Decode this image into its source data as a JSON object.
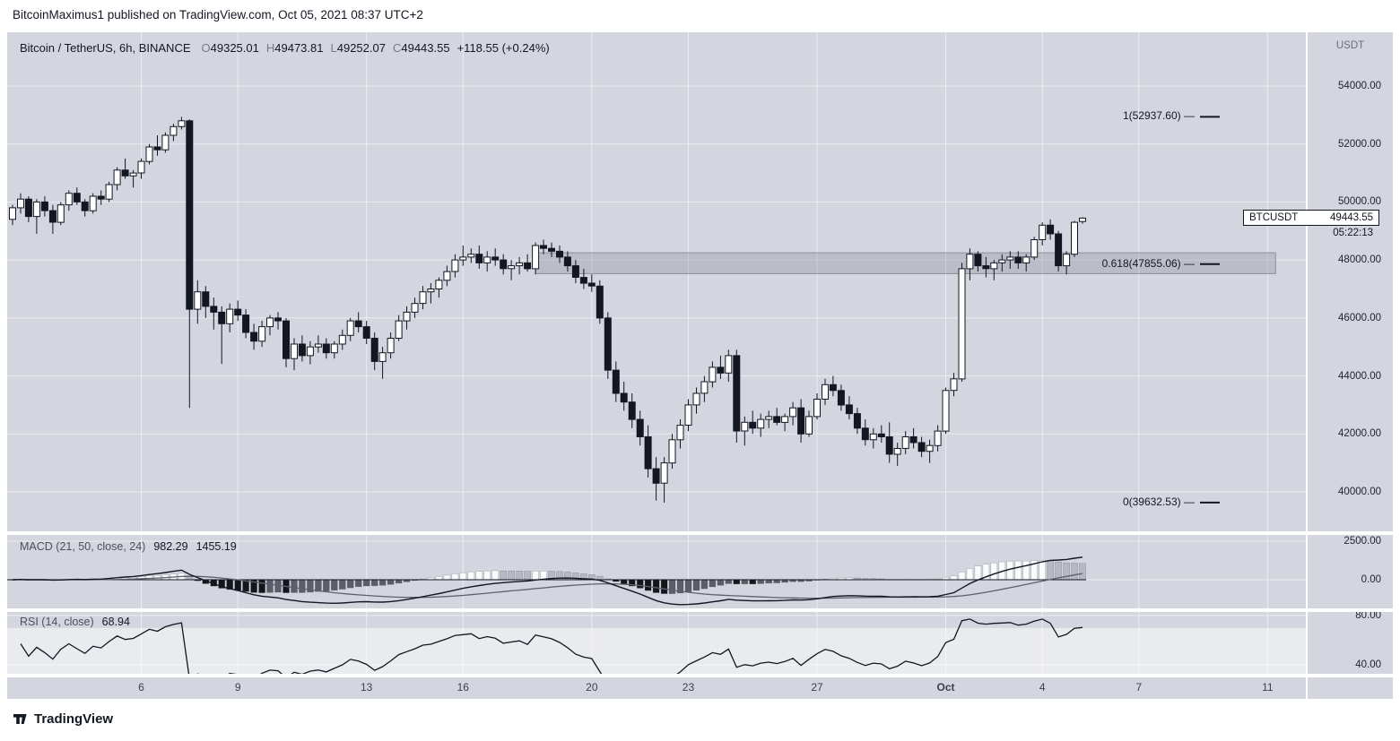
{
  "attribution": "BitcoinMaximus1 published on TradingView.com, Oct 05, 2021 08:37 UTC+2",
  "header": {
    "symbol_line": "Bitcoin / TetherUS, 6h, BINANCE",
    "ohlc": {
      "o_label": "O",
      "o": "49325.01",
      "h_label": "H",
      "h": "49473.81",
      "l_label": "L",
      "l": "49252.07",
      "c_label": "C",
      "c": "49443.55",
      "change": "+118.55 (+0.24%)"
    },
    "axis_currency": "USDT"
  },
  "price_label": {
    "symbol": "BTCUSDT",
    "price": "49443.55",
    "countdown": "05:22:13"
  },
  "macd_pane": {
    "title": "MACD (21, 50, close, 24)",
    "value_a": "982.29",
    "value_b": "1455.19"
  },
  "rsi_pane": {
    "title": "RSI (14, close)",
    "value": "68.94"
  },
  "footer": {
    "brand": "TradingView"
  },
  "chart_data": {
    "type": "candlestick",
    "symbol": "BTCUSDT",
    "exchange": "BINANCE",
    "interval": "6h",
    "title": "Bitcoin / TetherUS, 6h, BINANCE",
    "ohlc_current": {
      "open": 49325.01,
      "high": 49473.81,
      "low": 49252.07,
      "close": 49443.55,
      "change": 118.55,
      "change_pct": 0.24
    },
    "last_price": 49443.55,
    "countdown": "05:22:13",
    "y_axis": {
      "currency": "USDT",
      "ticks": [
        54000,
        52000,
        50000,
        48000,
        46000,
        44000,
        42000,
        40000
      ]
    },
    "time_ticks": [
      {
        "label": "6",
        "index": 16
      },
      {
        "label": "9",
        "index": 28
      },
      {
        "label": "13",
        "index": 44
      },
      {
        "label": "16",
        "index": 56
      },
      {
        "label": "20",
        "index": 72
      },
      {
        "label": "23",
        "index": 84
      },
      {
        "label": "27",
        "index": 100
      },
      {
        "label": "Oct",
        "index": 116,
        "bold": true
      },
      {
        "label": "4",
        "index": 128
      },
      {
        "label": "7",
        "index": 140
      },
      {
        "label": "11",
        "index": 156
      }
    ],
    "fib_retracement": {
      "levels": [
        {
          "label": "1(52937.60) —",
          "value": 52937.6
        },
        {
          "label": "0.618(47855.06) —",
          "value": 47855.06
        },
        {
          "label": "0(39632.53) —",
          "value": 39632.53
        }
      ]
    },
    "zone_band": {
      "price_top": 48250,
      "price_bottom": 47530,
      "start_index": 65,
      "end_index": 157
    },
    "indicators": {
      "macd": {
        "fast": 21,
        "slow": 50,
        "source": "close",
        "signal": 24,
        "display_values": [
          982.29,
          1455.19
        ],
        "axis_ticks": [
          2500,
          0
        ]
      },
      "rsi": {
        "length": 14,
        "source": "close",
        "display_value": 68.94,
        "axis_ticks": [
          80,
          40
        ],
        "band": [
          30,
          70
        ]
      }
    },
    "candles": [
      [
        49400,
        49900,
        49200,
        49800
      ],
      [
        49800,
        50300,
        49600,
        50100
      ],
      [
        50100,
        50200,
        49300,
        49500
      ],
      [
        49500,
        50100,
        48900,
        50000
      ],
      [
        50000,
        50200,
        49500,
        49700
      ],
      [
        49700,
        49900,
        48900,
        49300
      ],
      [
        49300,
        50000,
        49200,
        49900
      ],
      [
        49900,
        50400,
        49700,
        50300
      ],
      [
        50300,
        50500,
        49900,
        50000
      ],
      [
        50000,
        50100,
        49500,
        49700
      ],
      [
        49700,
        50300,
        49600,
        50200
      ],
      [
        50200,
        50400,
        49900,
        50100
      ],
      [
        50100,
        50700,
        50000,
        50600
      ],
      [
        50600,
        51200,
        50400,
        51100
      ],
      [
        51100,
        51500,
        50800,
        50900
      ],
      [
        50900,
        51100,
        50500,
        51000
      ],
      [
        51000,
        51500,
        50800,
        51400
      ],
      [
        51400,
        52000,
        51300,
        51900
      ],
      [
        51900,
        52300,
        51600,
        51800
      ],
      [
        51800,
        52400,
        51700,
        52300
      ],
      [
        52300,
        52700,
        52100,
        52600
      ],
      [
        52600,
        52937.6,
        52500,
        52800
      ],
      [
        52800,
        52850,
        42900,
        46300
      ],
      [
        46300,
        47300,
        45800,
        46900
      ],
      [
        46900,
        47100,
        46000,
        46400
      ],
      [
        46400,
        46700,
        45600,
        46200
      ],
      [
        46200,
        46400,
        44412,
        45800
      ],
      [
        45800,
        46500,
        45500,
        46300
      ],
      [
        46300,
        46600,
        45900,
        46100
      ],
      [
        46100,
        46300,
        45300,
        45500
      ],
      [
        45500,
        45800,
        44900,
        45200
      ],
      [
        45200,
        45900,
        45000,
        45700
      ],
      [
        45700,
        46100,
        45400,
        46000
      ],
      [
        46000,
        46200,
        45600,
        45900
      ],
      [
        45900,
        46000,
        44300,
        44600
      ],
      [
        44600,
        45300,
        44200,
        45100
      ],
      [
        45100,
        45400,
        44500,
        44700
      ],
      [
        44700,
        45200,
        44400,
        45000
      ],
      [
        45000,
        45400,
        44800,
        45100
      ],
      [
        45100,
        45300,
        44600,
        44800
      ],
      [
        44800,
        45200,
        44600,
        45100
      ],
      [
        45100,
        45600,
        44900,
        45400
      ],
      [
        45400,
        46000,
        45200,
        45900
      ],
      [
        45900,
        46200,
        45500,
        45700
      ],
      [
        45700,
        45900,
        45100,
        45300
      ],
      [
        45300,
        45500,
        44200,
        44500
      ],
      [
        44500,
        45000,
        43900,
        44800
      ],
      [
        44800,
        45500,
        44600,
        45300
      ],
      [
        45300,
        46100,
        45200,
        45900
      ],
      [
        45900,
        46400,
        45600,
        46200
      ],
      [
        46200,
        46700,
        46000,
        46500
      ],
      [
        46500,
        47100,
        46300,
        46900
      ],
      [
        46900,
        47200,
        46500,
        47000
      ],
      [
        47000,
        47400,
        46700,
        47300
      ],
      [
        47300,
        47800,
        47100,
        47600
      ],
      [
        47600,
        48200,
        47400,
        48000
      ],
      [
        48000,
        48500,
        47800,
        48100
      ],
      [
        48100,
        48400,
        47900,
        48200
      ],
      [
        48200,
        48500,
        47700,
        47900
      ],
      [
        47900,
        48300,
        47600,
        48100
      ],
      [
        48100,
        48400,
        47800,
        48000
      ],
      [
        48000,
        48200,
        47500,
        47700
      ],
      [
        47700,
        48000,
        47300,
        47800
      ],
      [
        47800,
        48100,
        47500,
        47900
      ],
      [
        47900,
        48200,
        47600,
        47700
      ],
      [
        47700,
        48600,
        47500,
        48500
      ],
      [
        48500,
        48700,
        48200,
        48400
      ],
      [
        48400,
        48600,
        48100,
        48300
      ],
      [
        48300,
        48500,
        47900,
        48100
      ],
      [
        48100,
        48300,
        47600,
        47800
      ],
      [
        47800,
        48000,
        47200,
        47400
      ],
      [
        47400,
        47700,
        47000,
        47200
      ],
      [
        47200,
        47500,
        46900,
        47100
      ],
      [
        47100,
        47300,
        45800,
        46000
      ],
      [
        46000,
        46200,
        43900,
        44200
      ],
      [
        44200,
        44500,
        43100,
        43400
      ],
      [
        43400,
        43800,
        42800,
        43100
      ],
      [
        43100,
        43400,
        42200,
        42500
      ],
      [
        42500,
        42800,
        41600,
        41900
      ],
      [
        41900,
        42300,
        40500,
        40800
      ],
      [
        40800,
        41200,
        39700,
        40300
      ],
      [
        40300,
        41200,
        39632.53,
        41000
      ],
      [
        41000,
        42000,
        40800,
        41800
      ],
      [
        41800,
        42500,
        41500,
        42300
      ],
      [
        42300,
        43200,
        42100,
        43000
      ],
      [
        43000,
        43600,
        42700,
        43400
      ],
      [
        43400,
        44000,
        43100,
        43800
      ],
      [
        43800,
        44500,
        43600,
        44300
      ],
      [
        44300,
        44700,
        43900,
        44100
      ],
      [
        44100,
        44900,
        43800,
        44700
      ],
      [
        44700,
        44900,
        41700,
        42100
      ],
      [
        42100,
        42600,
        41600,
        42400
      ],
      [
        42400,
        42800,
        42000,
        42200
      ],
      [
        42200,
        42700,
        41900,
        42500
      ],
      [
        42500,
        42800,
        42200,
        42600
      ],
      [
        42600,
        42900,
        42300,
        42400
      ],
      [
        42400,
        42700,
        42100,
        42600
      ],
      [
        42600,
        43100,
        42300,
        42900
      ],
      [
        42900,
        43200,
        41700,
        42000
      ],
      [
        42000,
        42800,
        41900,
        42600
      ],
      [
        42600,
        43400,
        42500,
        43200
      ],
      [
        43200,
        43900,
        43000,
        43700
      ],
      [
        43700,
        44000,
        43300,
        43500
      ],
      [
        43500,
        43700,
        42800,
        43000
      ],
      [
        43000,
        43300,
        42500,
        42700
      ],
      [
        42700,
        42900,
        42000,
        42200
      ],
      [
        42200,
        42500,
        41600,
        41800
      ],
      [
        41800,
        42200,
        41500,
        42000
      ],
      [
        42000,
        42300,
        41700,
        41900
      ],
      [
        41900,
        42400,
        41000,
        41300
      ],
      [
        41300,
        41700,
        40900,
        41500
      ],
      [
        41500,
        42100,
        41300,
        41900
      ],
      [
        41900,
        42200,
        41500,
        41700
      ],
      [
        41700,
        41900,
        41200,
        41400
      ],
      [
        41400,
        41800,
        41000,
        41600
      ],
      [
        41600,
        42300,
        41400,
        42100
      ],
      [
        42100,
        43600,
        42000,
        43500
      ],
      [
        43500,
        44100,
        43300,
        43900
      ],
      [
        43900,
        47900,
        43800,
        47700
      ],
      [
        47700,
        48400,
        47300,
        48200
      ],
      [
        48200,
        48300,
        47600,
        47800
      ],
      [
        47800,
        48100,
        47400,
        47700
      ],
      [
        47700,
        48000,
        47300,
        47900
      ],
      [
        47900,
        48200,
        47600,
        48000
      ],
      [
        48000,
        48300,
        47700,
        48100
      ],
      [
        48100,
        48300,
        47700,
        47900
      ],
      [
        47900,
        48200,
        47600,
        48100
      ],
      [
        48100,
        48800,
        48000,
        48700
      ],
      [
        48700,
        49300,
        48500,
        49200
      ],
      [
        49200,
        49400,
        48700,
        48900
      ],
      [
        48900,
        49000,
        47600,
        47800
      ],
      [
        47800,
        48300,
        47500,
        48200
      ],
      [
        48200,
        49350,
        48100,
        49300
      ],
      [
        49325.01,
        49473.81,
        49252.07,
        49443.55
      ]
    ]
  }
}
